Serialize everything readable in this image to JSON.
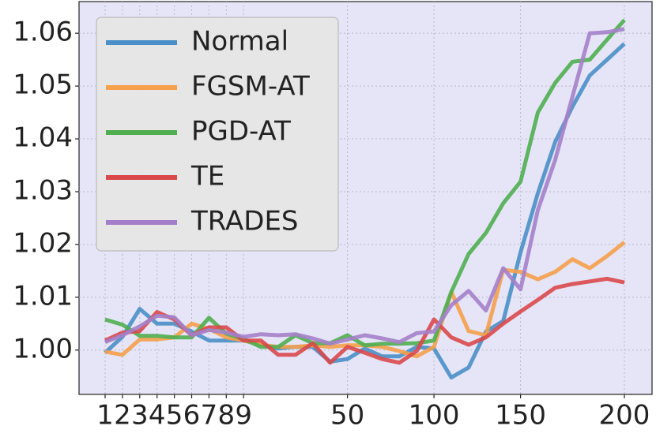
{
  "chart_data": {
    "type": "line",
    "categories": [
      "1",
      "2",
      "3",
      "4",
      "5",
      "6",
      "7",
      "8",
      "9",
      null,
      null,
      null,
      null,
      null,
      "50",
      null,
      null,
      null,
      null,
      "100",
      null,
      null,
      null,
      null,
      "150",
      null,
      null,
      null,
      null,
      null,
      "200"
    ],
    "series": [
      {
        "name": "Normal",
        "color": "#4a8fc7",
        "values": [
          0.9995,
          1.0025,
          1.0078,
          1.005,
          1.005,
          1.0035,
          1.0018,
          1.0018,
          1.0018,
          1.001,
          1.0003,
          1.0006,
          1.0006,
          0.9978,
          0.9983,
          1.0003,
          0.9988,
          0.9988,
          1.0006,
          1.0003,
          0.9948,
          0.9967,
          1.0035,
          1.0055,
          1.0185,
          1.0297,
          1.0394,
          1.0461,
          1.052,
          1.055,
          1.058
        ]
      },
      {
        "name": "FGSM-AT",
        "color": "#f5a04a",
        "values": [
          0.9997,
          0.9991,
          1.002,
          1.002,
          1.0024,
          1.005,
          1.004,
          1.0024,
          1.0018,
          1.001,
          1.0006,
          1.0006,
          1.0009,
          1.0006,
          1.0009,
          1.0009,
          1.0006,
          0.9998,
          0.9988,
          1.0006,
          1.011,
          1.0036,
          1.0028,
          1.0152,
          1.0148,
          1.0134,
          1.0148,
          1.0172,
          1.0155,
          1.0178,
          1.0204
        ]
      },
      {
        "name": "PGD-AT",
        "color": "#4fae50",
        "values": [
          1.0058,
          1.0048,
          1.0027,
          1.0027,
          1.0024,
          1.0024,
          1.0061,
          1.0031,
          1.0021,
          1.0006,
          1.0006,
          1.0028,
          1.0013,
          1.0013,
          1.0028,
          1.0009,
          1.0012,
          1.0012,
          1.0013,
          1.0018,
          1.011,
          1.0182,
          1.0222,
          1.0278,
          1.0319,
          1.045,
          1.0506,
          1.0546,
          1.055,
          1.0588,
          1.0625
        ]
      },
      {
        "name": "TE",
        "color": "#d9484a",
        "values": [
          1.0018,
          1.0033,
          1.0036,
          1.0072,
          1.0058,
          1.0028,
          1.0043,
          1.0043,
          1.0018,
          1.0018,
          0.9991,
          0.9991,
          1.0013,
          0.9976,
          1.0006,
          0.9995,
          0.9983,
          0.9976,
          0.9998,
          1.0058,
          1.0024,
          1.001,
          1.0024,
          1.005,
          1.0073,
          1.0095,
          1.0118,
          1.0125,
          1.013,
          1.0135,
          1.0128
        ]
      },
      {
        "name": "TRADES",
        "color": "#a47fc9",
        "values": [
          1.0015,
          1.0028,
          1.0045,
          1.0065,
          1.0062,
          1.0028,
          1.0038,
          1.0033,
          1.0025,
          1.003,
          1.0028,
          1.003,
          1.0022,
          1.0012,
          1.002,
          1.0028,
          1.0022,
          1.0015,
          1.0032,
          1.0035,
          1.0085,
          1.0112,
          1.0075,
          1.0155,
          1.0115,
          1.0265,
          1.036,
          1.048,
          1.06,
          1.0602,
          1.0608
        ]
      }
    ],
    "ylim": [
      0.9916,
      1.066
    ],
    "yticks": [
      {
        "value": 1.0,
        "label": "1.00"
      },
      1.01,
      1.02,
      1.03,
      1.04,
      1.05,
      1.06
    ],
    "grid": true,
    "legend": "upper left"
  }
}
